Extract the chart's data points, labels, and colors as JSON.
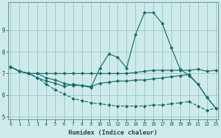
{
  "xlabel": "Humidex (Indice chaleur)",
  "bg_color": "#ceeaea",
  "grid_color": "#9dc8c8",
  "line_color": "#1a6b6b",
  "x_values": [
    0,
    1,
    2,
    3,
    4,
    5,
    6,
    7,
    8,
    9,
    10,
    11,
    12,
    13,
    14,
    15,
    16,
    17,
    18,
    19,
    20,
    21,
    22,
    23
  ],
  "series1": [
    7.3,
    7.1,
    7.0,
    7.0,
    6.8,
    6.7,
    6.55,
    6.45,
    6.45,
    6.35,
    7.25,
    7.9,
    7.75,
    7.25,
    8.8,
    9.8,
    9.8,
    9.3,
    8.2,
    7.2,
    6.9,
    6.5,
    5.9,
    5.4
  ],
  "series2": [
    7.3,
    7.1,
    7.0,
    7.0,
    7.0,
    7.0,
    7.0,
    7.0,
    7.0,
    7.0,
    7.0,
    7.0,
    7.0,
    7.0,
    7.05,
    7.1,
    7.15,
    7.15,
    7.15,
    7.15,
    7.15,
    7.2,
    7.1,
    7.15
  ],
  "series3": [
    7.3,
    7.1,
    7.0,
    6.8,
    6.65,
    6.55,
    6.4,
    6.5,
    6.45,
    6.4,
    6.55,
    6.6,
    6.65,
    6.65,
    6.7,
    6.7,
    6.75,
    6.8,
    6.85,
    6.9,
    6.95,
    6.5,
    5.9,
    5.4
  ],
  "series4": [
    7.3,
    7.1,
    7.0,
    6.8,
    6.5,
    6.25,
    6.05,
    5.85,
    5.75,
    5.65,
    5.6,
    5.55,
    5.5,
    5.5,
    5.5,
    5.5,
    5.55,
    5.55,
    5.6,
    5.65,
    5.7,
    5.5,
    5.3,
    5.4
  ],
  "ylim": [
    4.9,
    10.3
  ],
  "xlim": [
    -0.3,
    23.3
  ],
  "yticks": [
    5,
    6,
    7,
    8,
    9
  ],
  "xticks": [
    0,
    1,
    2,
    3,
    4,
    5,
    6,
    7,
    8,
    9,
    10,
    11,
    12,
    13,
    14,
    15,
    16,
    17,
    18,
    19,
    20,
    21,
    22,
    23
  ]
}
